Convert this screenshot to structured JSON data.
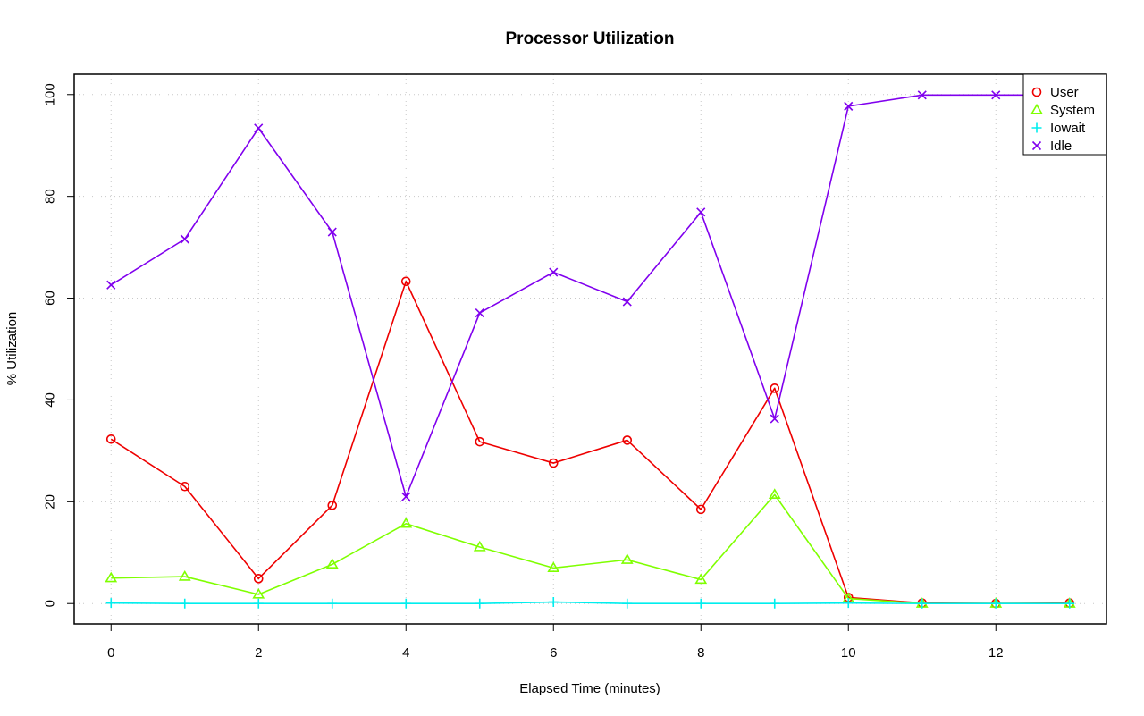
{
  "chart_data": {
    "type": "line",
    "title": "Processor Utilization",
    "xlabel": "Elapsed Time (minutes)",
    "ylabel": "% Utilization",
    "xlim": [
      -0.5,
      13.5
    ],
    "ylim": [
      -4,
      104
    ],
    "xticks": [
      0,
      2,
      4,
      6,
      8,
      10,
      12
    ],
    "yticks": [
      0,
      20,
      40,
      60,
      80,
      100
    ],
    "grid": true,
    "legend_position": "top-right",
    "x": [
      0,
      1,
      2,
      3,
      4,
      5,
      6,
      7,
      8,
      9,
      10,
      11,
      12,
      13
    ],
    "series": [
      {
        "name": "User",
        "color": "#ee0000",
        "marker": "circle",
        "values": [
          32.3,
          23.0,
          4.9,
          19.3,
          63.3,
          31.8,
          27.6,
          32.1,
          18.5,
          42.3,
          1.2,
          0.1,
          0.0,
          0.1
        ]
      },
      {
        "name": "System",
        "color": "#7fff00",
        "marker": "triangle",
        "values": [
          5.0,
          5.3,
          1.8,
          7.7,
          15.7,
          11.1,
          7.0,
          8.6,
          4.7,
          21.4,
          1.0,
          0.0,
          0.0,
          0.0
        ]
      },
      {
        "name": "Iowait",
        "color": "#00eeee",
        "marker": "plus",
        "values": [
          0.1,
          0.0,
          0.0,
          0.0,
          0.0,
          0.0,
          0.3,
          0.0,
          0.0,
          0.0,
          0.1,
          0.0,
          0.0,
          0.0
        ]
      },
      {
        "name": "Idle",
        "color": "#8000ee",
        "marker": "cross",
        "values": [
          62.6,
          71.6,
          93.4,
          73.0,
          21.0,
          57.1,
          65.1,
          59.3,
          76.9,
          36.3,
          97.7,
          99.9,
          99.9,
          99.9
        ]
      }
    ]
  }
}
